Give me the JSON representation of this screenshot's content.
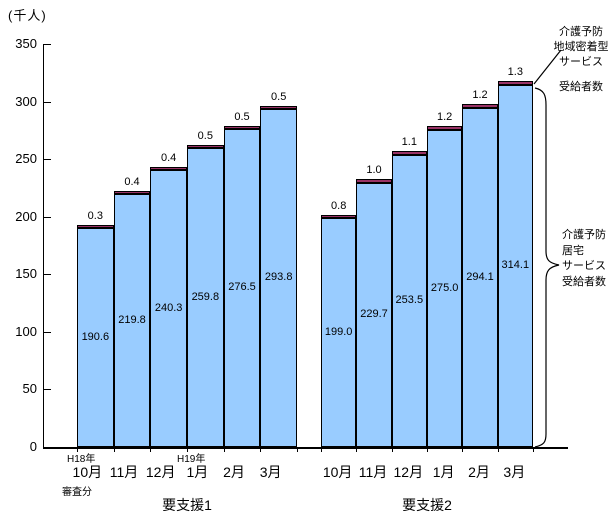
{
  "chart_data": {
    "type": "bar",
    "stacked": true,
    "unit_label": "(千人)",
    "ylim": [
      0,
      350
    ],
    "yticks": [
      0,
      50,
      100,
      150,
      200,
      250,
      300,
      350
    ],
    "grid": false,
    "legend_position": "right-annotations",
    "series": [
      {
        "name": "介護予防居宅サービス受給者数",
        "color": "#99CCFF",
        "label_position": "inside-center"
      },
      {
        "name": "介護予防地域密着型サービス受給者数",
        "color": "#993366",
        "label_position": "above-bar"
      }
    ],
    "groups": [
      {
        "name": "要支援1",
        "categories": [
          "10月",
          "11月",
          "12月",
          "1月",
          "2月",
          "3月"
        ],
        "values": {
          "kyotaku": [
            "190.6",
            "219.8",
            "240.3",
            "259.8",
            "276.5",
            "293.8"
          ],
          "chiiki": [
            "0.3",
            "0.4",
            "0.4",
            "0.5",
            "0.5",
            "0.5"
          ]
        },
        "era_labels": [
          {
            "index": 0,
            "text": "H18年"
          },
          {
            "index": 3,
            "text": "H19年"
          }
        ],
        "notes": [
          {
            "index": 0,
            "text": "審査分"
          }
        ]
      },
      {
        "name": "要支援2",
        "categories": [
          "10月",
          "11月",
          "12月",
          "1月",
          "2月",
          "3月"
        ],
        "values": {
          "kyotaku": [
            "199.0",
            "229.7",
            "253.5",
            "275.0",
            "294.1",
            "314.1"
          ],
          "chiiki": [
            "0.8",
            "1.0",
            "1.1",
            "1.2",
            "1.2",
            "1.3"
          ]
        },
        "era_labels": [],
        "notes": []
      }
    ],
    "right_annotations": {
      "chiiki_lines": [
        "介護予防",
        "地域密着型",
        "サービス",
        "受給者数"
      ],
      "kyotaku_lines": [
        "介護予防",
        "居宅",
        "サービス",
        "受給者数"
      ]
    },
    "colors": {
      "bar_fill": "#99CCFF",
      "segment_fill": "#993366",
      "axis": "#000000",
      "background": "#FFFFFF"
    }
  }
}
